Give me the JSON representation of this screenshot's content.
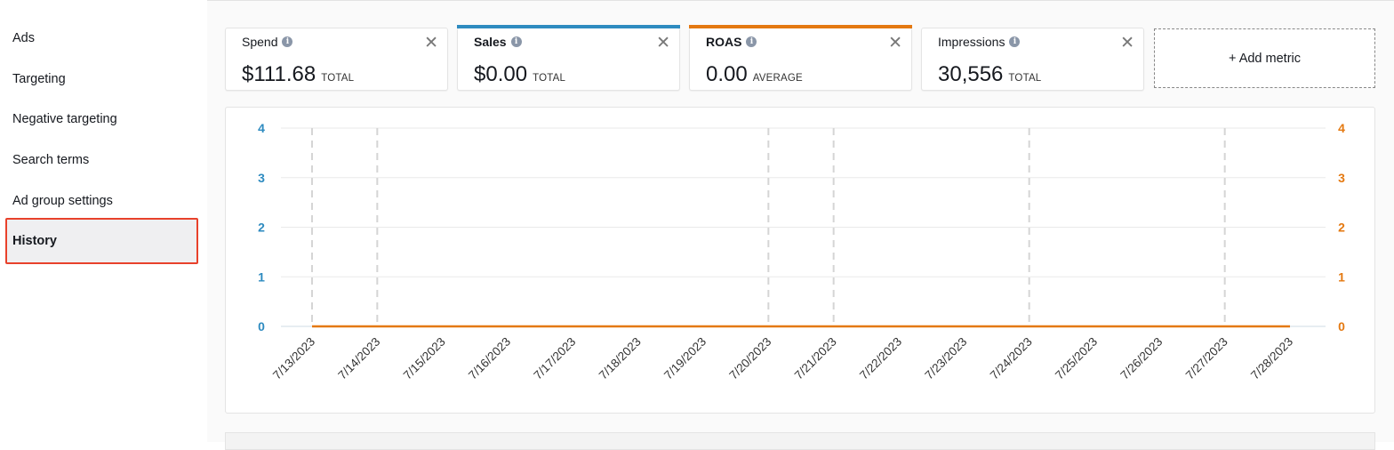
{
  "sidebar": {
    "items": [
      {
        "label": "Ads"
      },
      {
        "label": "Targeting"
      },
      {
        "label": "Negative targeting"
      },
      {
        "label": "Search terms"
      },
      {
        "label": "Ad group settings"
      },
      {
        "label": "History",
        "active": true
      }
    ]
  },
  "metrics": [
    {
      "title": "Spend",
      "value": "$111.68",
      "unit": "TOTAL",
      "accent": null
    },
    {
      "title": "Sales",
      "value": "$0.00",
      "unit": "TOTAL",
      "accent": "#2e8bc0"
    },
    {
      "title": "ROAS",
      "value": "0.00",
      "unit": "AVERAGE",
      "accent": "#e47911"
    },
    {
      "title": "Impressions",
      "value": "30,556",
      "unit": "TOTAL",
      "accent": null
    }
  ],
  "add_metric": {
    "label": "+ Add metric"
  },
  "chart_data": {
    "type": "line",
    "x": [
      "7/13/2023",
      "7/14/2023",
      "7/15/2023",
      "7/16/2023",
      "7/17/2023",
      "7/18/2023",
      "7/19/2023",
      "7/20/2023",
      "7/21/2023",
      "7/22/2023",
      "7/23/2023",
      "7/24/2023",
      "7/25/2023",
      "7/26/2023",
      "7/27/2023",
      "7/28/2023"
    ],
    "series": [
      {
        "name": "Sales",
        "axis": "left",
        "color": "#2e8bc0",
        "values": [
          0,
          0,
          0,
          0,
          0,
          0,
          0,
          0,
          0,
          0,
          0,
          0,
          0,
          0,
          0,
          0
        ]
      },
      {
        "name": "ROAS",
        "axis": "right",
        "color": "#e47911",
        "values": [
          0,
          0,
          0,
          0,
          0,
          0,
          0,
          0,
          0,
          0,
          0,
          0,
          0,
          0,
          0,
          0
        ]
      }
    ],
    "y_left": {
      "ticks": [
        "0",
        "1",
        "2",
        "3",
        "4"
      ],
      "range": [
        0,
        4
      ],
      "color": "#2e8bc0"
    },
    "y_right": {
      "ticks": [
        "0",
        "1",
        "2",
        "3",
        "4"
      ],
      "range": [
        0,
        4
      ],
      "color": "#e47911"
    },
    "event_markers": [
      "7/13/2023",
      "7/14/2023",
      "7/20/2023",
      "7/21/2023",
      "7/24/2023",
      "7/27/2023"
    ],
    "grid": true
  }
}
